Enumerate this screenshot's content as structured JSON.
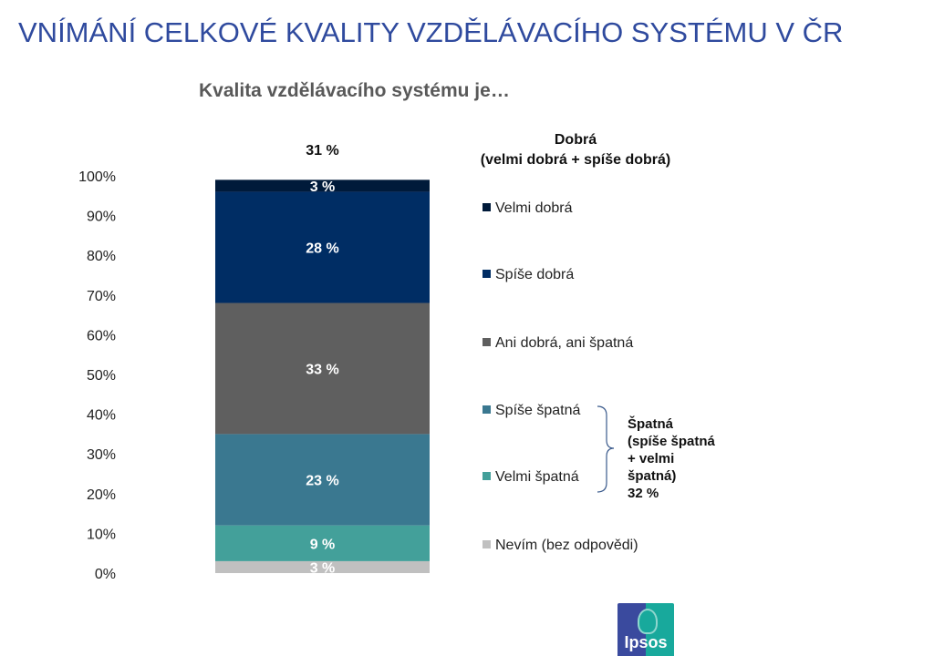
{
  "title": "VNÍMÁNÍ CELKOVÉ KVALITY VZDĚLÁVACÍHO SYSTÉMU V ČR",
  "logo": "Ipsos",
  "chart_data": {
    "type": "bar",
    "stacked": true,
    "title": "Kvalita vzdělávacího systému je…",
    "ylim": [
      0,
      100
    ],
    "yticks": [
      "0%",
      "10%",
      "20%",
      "30%",
      "40%",
      "50%",
      "60%",
      "70%",
      "80%",
      "90%",
      "100%"
    ],
    "grid": false,
    "legend_position": "right",
    "series": [
      {
        "name": "Nevím (bez odpovědi)",
        "value": 3,
        "label": "3 %",
        "color": "#c0c0c0"
      },
      {
        "name": "Velmi špatná",
        "value": 9,
        "label": "9 %",
        "color": "#43a09a"
      },
      {
        "name": "Spíše špatná",
        "value": 23,
        "label": "23 %",
        "color": "#3a7890"
      },
      {
        "name": "Ani dobrá, ani špatná",
        "value": 33,
        "label": "33 %",
        "color": "#5f5f5f"
      },
      {
        "name": "Spíše dobrá",
        "value": 28,
        "label": "28 %",
        "color": "#002d64"
      },
      {
        "name": "Velmi dobrá",
        "value": 3,
        "label": "3 %",
        "color": "#001a3a"
      }
    ],
    "annotations": {
      "good_total": "31 %",
      "good_label": [
        "Dobrá",
        "(velmi dobrá + spíše dobrá)"
      ],
      "bad_label": [
        "Špatná",
        "(spíše špatná",
        "+ velmi",
        "špatná)",
        "32 %"
      ]
    }
  }
}
